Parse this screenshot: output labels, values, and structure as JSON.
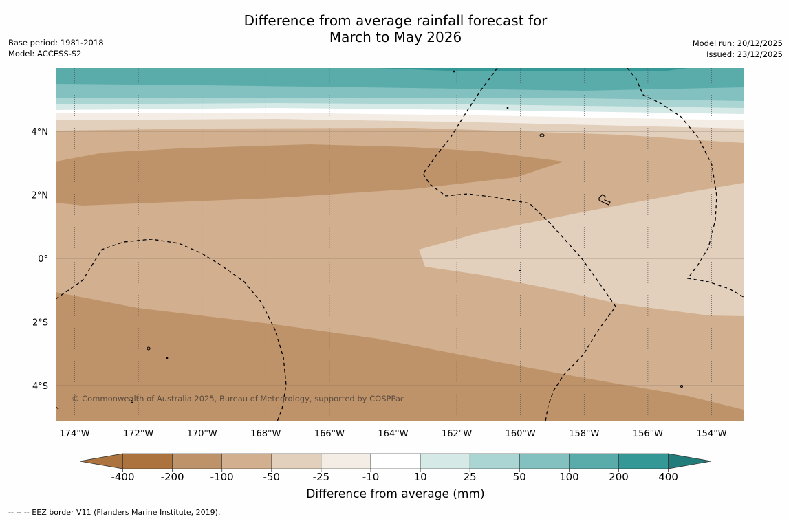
{
  "title": {
    "line1": "Difference from average rainfall forecast for",
    "line2": "March to May 2026"
  },
  "meta_left": {
    "base_period": "Base period: 1981-2018",
    "model": "Model: ACCESS-S2"
  },
  "meta_right": {
    "model_run": "Model run: 20/12/2025",
    "issued": "Issued: 23/12/2025"
  },
  "map": {
    "lat_labels": [
      "4°N",
      "2°N",
      "0°",
      "2°S",
      "4°S"
    ],
    "lon_labels": [
      "174°W",
      "172°W",
      "170°W",
      "168°W",
      "166°W",
      "164°W",
      "162°W",
      "160°W",
      "158°W",
      "156°W",
      "154°W"
    ],
    "copyright": "© Commonwealth of Australia 2025, Bureau of Meteorology, supported by COSPPac"
  },
  "colorbar": {
    "ticks": [
      "-400",
      "-200",
      "-100",
      "-50",
      "-25",
      "-10",
      "10",
      "25",
      "50",
      "100",
      "200",
      "400"
    ],
    "colors": [
      "#ac733f",
      "#bf936a",
      "#d2b08f",
      "#e2d0bd",
      "#f3ede6",
      "#ffffff",
      "#d5e9e7",
      "#abd5d3",
      "#82c1bf",
      "#5aacaa",
      "#349896",
      "#217c7a"
    ],
    "title": "Difference from average (mm)"
  },
  "footnote": "--  --  -- EEZ border V11 (Flanders Marine Institute, 2019)."
}
